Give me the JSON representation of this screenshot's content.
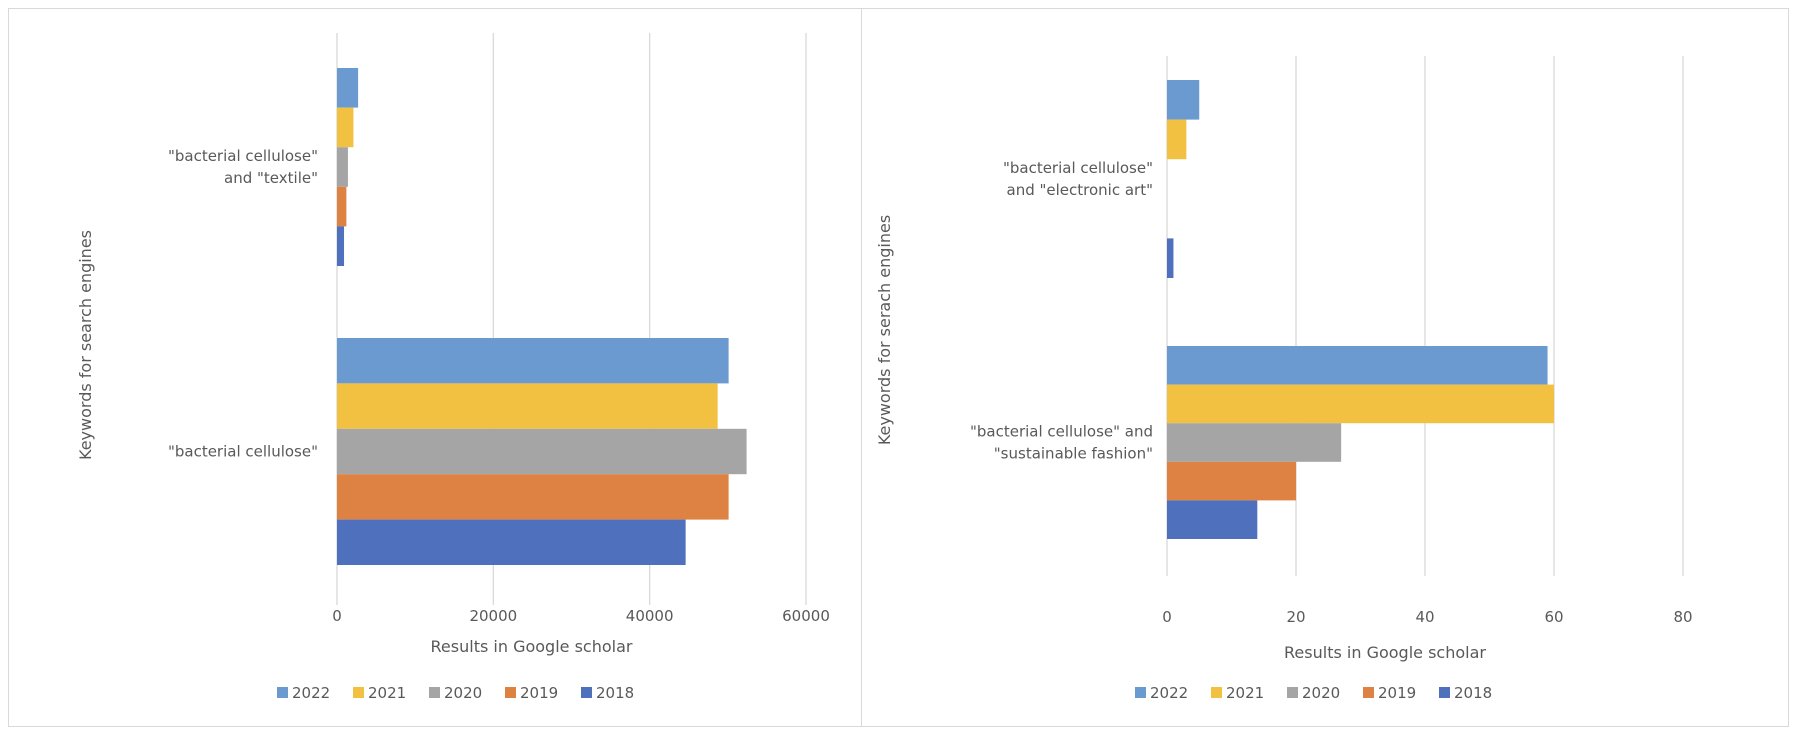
{
  "colors": {
    "2022": "#6a9acf",
    "2021": "#f3c142",
    "2020": "#a5a5a5",
    "2019": "#de8244",
    "2018": "#4f71bd",
    "grid": "#d9d9d9",
    "text": "#595959"
  },
  "chart_data": [
    {
      "type": "bar",
      "orientation": "horizontal",
      "title": "",
      "xlabel": "Results in Google scholar",
      "ylabel": "Keywords for search engines",
      "xlim": [
        0,
        60000
      ],
      "xticks": [
        "0",
        "20000",
        "40000",
        "60000"
      ],
      "xtick_values": [
        0,
        20000,
        40000,
        60000
      ],
      "grid": true,
      "legend_position": "bottom",
      "categories": [
        [
          "\"bacterial cellulose\"",
          "and \"textile\""
        ],
        [
          "\"bacterial cellulose\""
        ]
      ],
      "series": [
        {
          "name": "2022",
          "values": [
            2700,
            50100
          ]
        },
        {
          "name": "2021",
          "values": [
            2100,
            48700
          ]
        },
        {
          "name": "2020",
          "values": [
            1400,
            52400
          ]
        },
        {
          "name": "2019",
          "values": [
            1200,
            50100
          ]
        },
        {
          "name": "2018",
          "values": [
            900,
            44600
          ]
        }
      ]
    },
    {
      "type": "bar",
      "orientation": "horizontal",
      "title": "",
      "xlabel": "Results in Google scholar",
      "ylabel": "Keywords for serach engines",
      "xlim": [
        0,
        80
      ],
      "xticks": [
        "0",
        "20",
        "40",
        "60",
        "80"
      ],
      "xtick_values": [
        0,
        20,
        40,
        60,
        80
      ],
      "grid": true,
      "legend_position": "bottom",
      "categories": [
        [
          "\"bacterial cellulose\"",
          "and \"electronic art\""
        ],
        [
          "\"bacterial cellulose\" and",
          "\"sustainable fashion\""
        ]
      ],
      "series": [
        {
          "name": "2022",
          "values": [
            5,
            59
          ]
        },
        {
          "name": "2021",
          "values": [
            3,
            60
          ]
        },
        {
          "name": "2020",
          "values": [
            0,
            27
          ]
        },
        {
          "name": "2019",
          "values": [
            0,
            20
          ]
        },
        {
          "name": "2018",
          "values": [
            1,
            14
          ]
        }
      ]
    }
  ]
}
